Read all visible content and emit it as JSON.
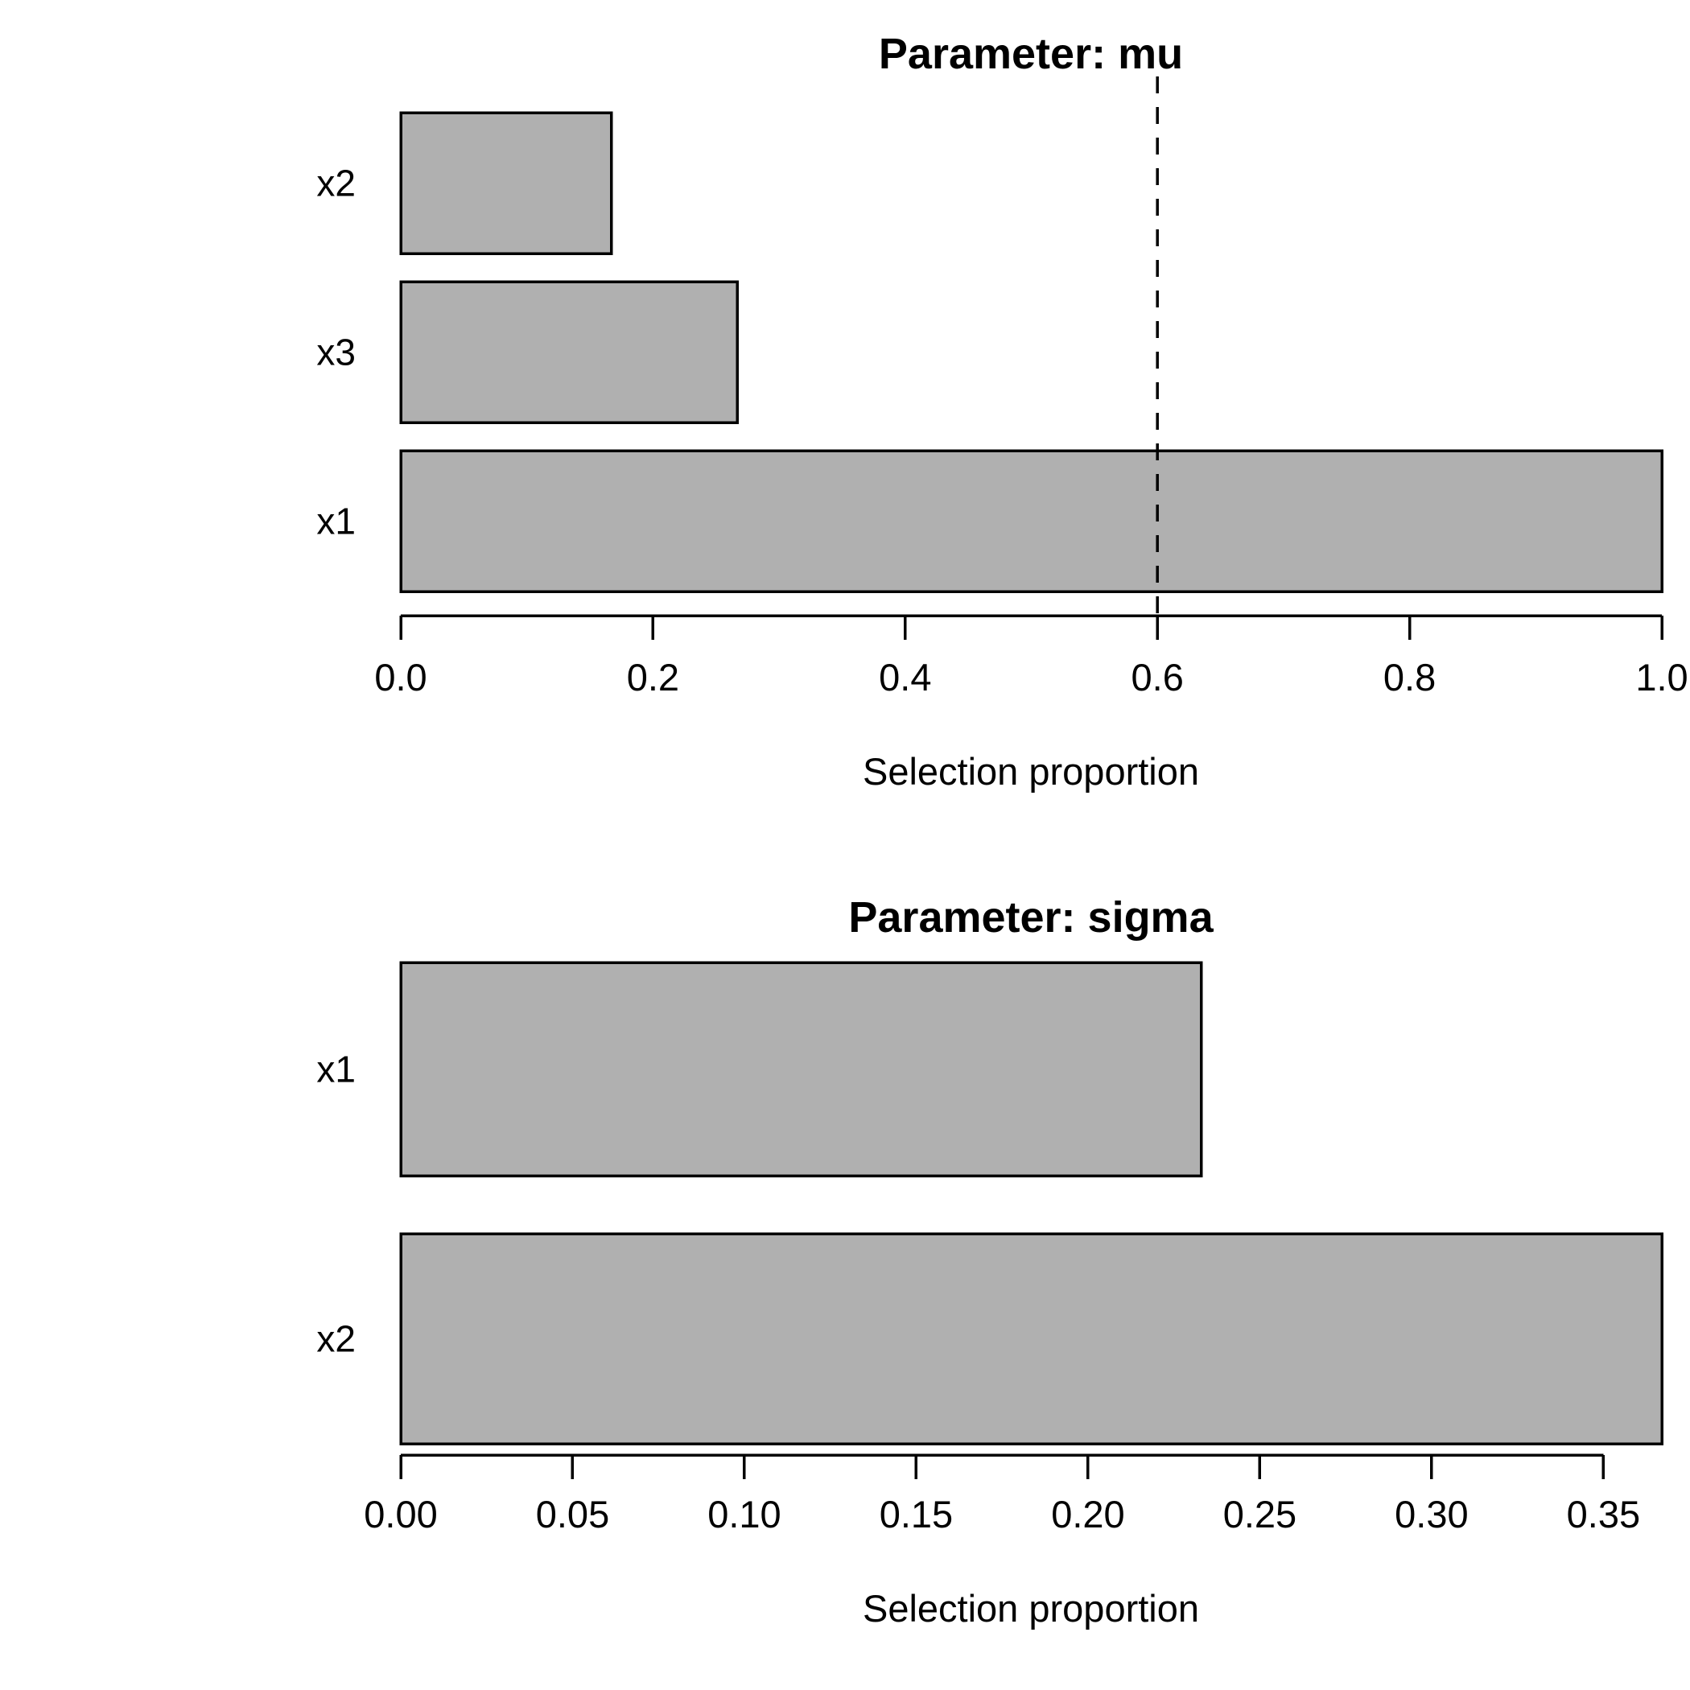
{
  "figure": {
    "background": "#ffffff",
    "description": "Two stacked horizontal bar charts of selection proportions per parameter"
  },
  "colors": {
    "bar_fill": "#b0b0b0",
    "bar_border": "#000000",
    "axis": "#000000",
    "text": "#000000",
    "threshold_line": "#000000"
  },
  "chart_data": [
    {
      "type": "bar",
      "orientation": "horizontal",
      "title": "Parameter: mu",
      "xlabel": "Selection proportion",
      "ylabel": "",
      "categories": [
        "x2",
        "x3",
        "x1"
      ],
      "values": [
        0.167,
        0.267,
        1.0
      ],
      "xlim": [
        0,
        1.0
      ],
      "tick_values": [
        0.0,
        0.2,
        0.4,
        0.6,
        0.8,
        1.0
      ],
      "tick_labels": [
        "0.0",
        "0.2",
        "0.4",
        "0.6",
        "0.8",
        "1.0"
      ],
      "threshold_value": 0.6,
      "threshold_style": "dashed",
      "grid": false,
      "legend": false
    },
    {
      "type": "bar",
      "orientation": "horizontal",
      "title": "Parameter: sigma",
      "xlabel": "Selection proportion",
      "ylabel": "",
      "categories": [
        "x1",
        "x2"
      ],
      "values": [
        0.233,
        0.367
      ],
      "xlim": [
        0,
        0.367
      ],
      "tick_values": [
        0.0,
        0.05,
        0.1,
        0.15,
        0.2,
        0.25,
        0.3,
        0.35
      ],
      "tick_labels": [
        "0.00",
        "0.05",
        "0.10",
        "0.15",
        "0.20",
        "0.25",
        "0.30",
        "0.35"
      ],
      "threshold_value": null,
      "threshold_style": null,
      "grid": false,
      "legend": false
    }
  ]
}
